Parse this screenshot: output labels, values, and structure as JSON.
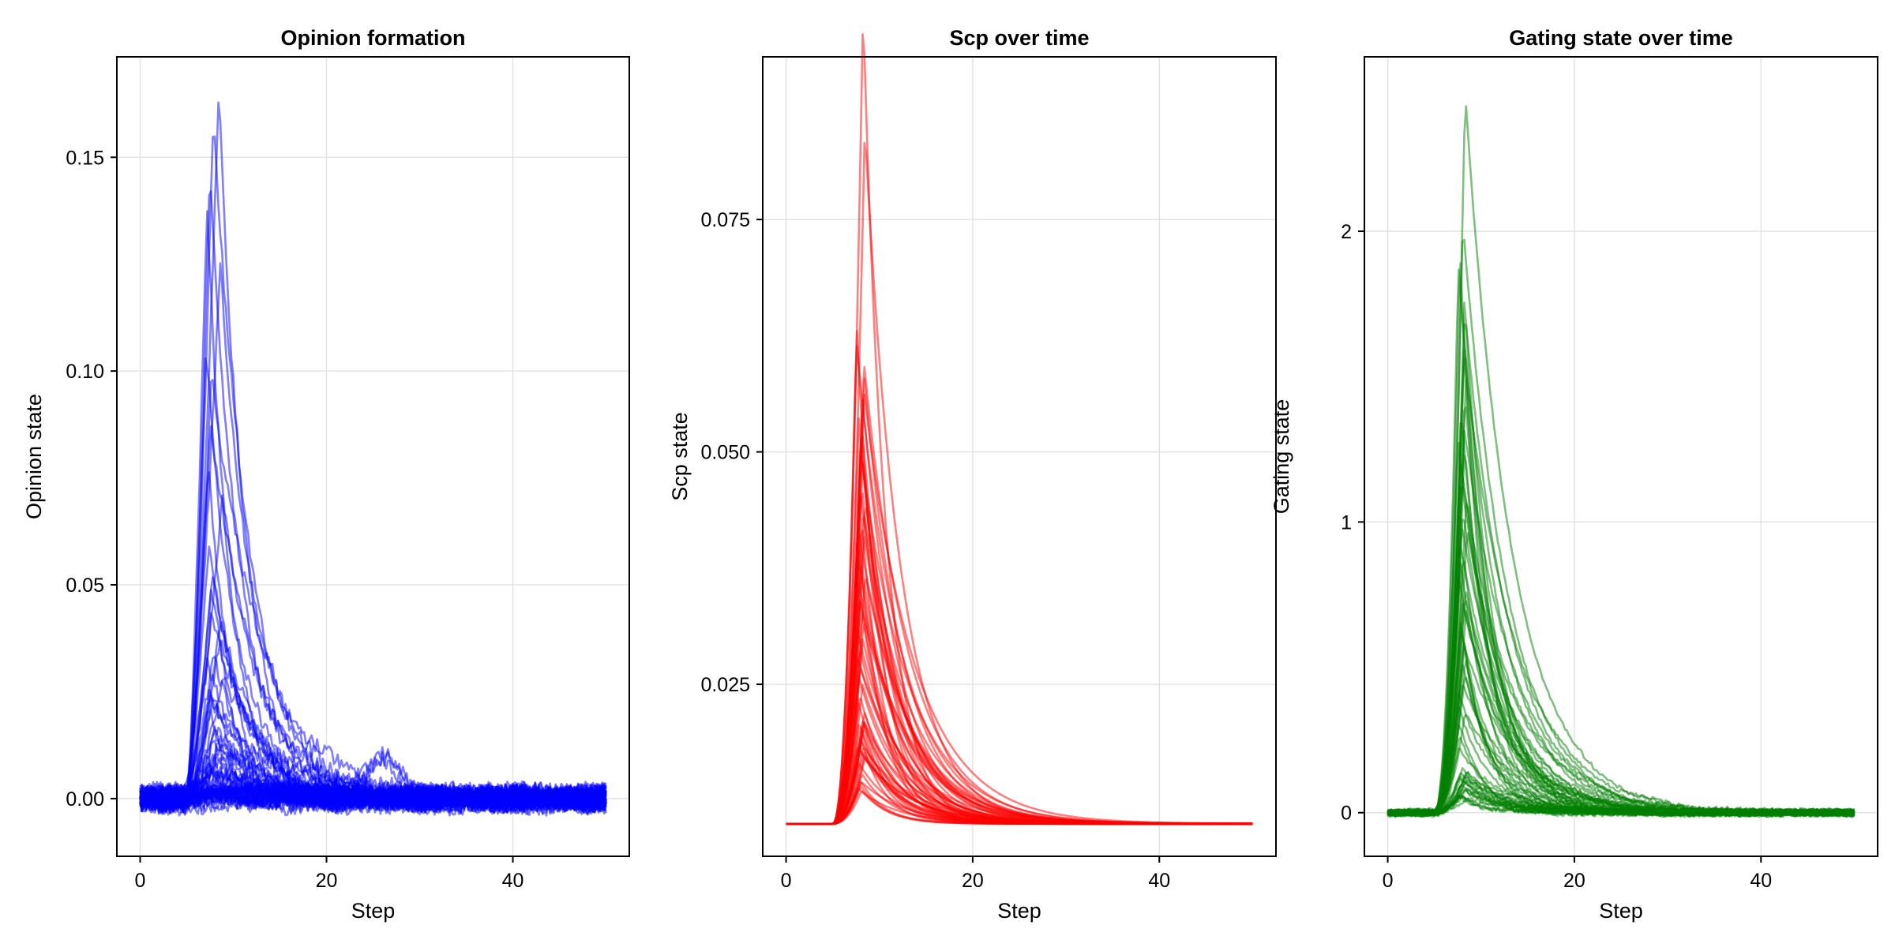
{
  "chart_data": [
    {
      "type": "line",
      "title": "Opinion formation",
      "xlabel": "Step",
      "ylabel": "Opinion state",
      "xlim": [
        -2.5,
        52.5
      ],
      "ylim": [
        -0.0135,
        0.1735
      ],
      "xticks": [
        0,
        20,
        40
      ],
      "xtick_labels": [
        "0",
        "20",
        "40"
      ],
      "yticks": [
        0,
        0.05,
        0.1,
        0.15
      ],
      "ytick_labels": [
        "0.00",
        "0.05",
        "0.10",
        "0.15"
      ],
      "grid": true,
      "color": "#0000ff",
      "x_range": [
        0,
        50
      ],
      "onset_step": 5,
      "series_count": 60,
      "peak_step_range": [
        7,
        9
      ],
      "peak_values": [
        0.166,
        0.16,
        0.147,
        0.14,
        0.125,
        0.106,
        0.1,
        0.09,
        0.08,
        0.07,
        0.06,
        0.055,
        0.05,
        0.045,
        0.04,
        0.037,
        0.034,
        0.031,
        0.028,
        0.026,
        0.024,
        0.022,
        0.02,
        0.018,
        0.016,
        0.014,
        0.012,
        0.011,
        0.01,
        0.009,
        0.008,
        0.007,
        0.006,
        0.005,
        0.0045,
        0.004,
        0.0035,
        0.003,
        0.0025,
        0.002
      ],
      "baseline_noise": 0.004,
      "secondary_bump": {
        "step": 26,
        "value": 0.011
      }
    },
    {
      "type": "line",
      "title": "Scp over time",
      "xlabel": "Step",
      "ylabel": "Scp state",
      "xlim": [
        -2.5,
        52.5
      ],
      "ylim": [
        0.0065,
        0.0925
      ],
      "xticks": [
        0,
        20,
        40
      ],
      "xtick_labels": [
        "0",
        "20",
        "40"
      ],
      "yticks": [
        0.025,
        0.05,
        0.075
      ],
      "ytick_labels": [
        "0.025",
        "0.050",
        "0.075"
      ],
      "grid": true,
      "color": "#ff0000",
      "x_range": [
        0,
        50
      ],
      "baseline": 0.01,
      "onset_step": 5,
      "series_count": 60,
      "peak_step_range": [
        7.5,
        8.5
      ],
      "peak_values": [
        0.088,
        0.075,
        0.054,
        0.052,
        0.05,
        0.048,
        0.047,
        0.046,
        0.044,
        0.043,
        0.042,
        0.04,
        0.039,
        0.037,
        0.036,
        0.035,
        0.034,
        0.033,
        0.032,
        0.031,
        0.03,
        0.029,
        0.028,
        0.027,
        0.026,
        0.025,
        0.024,
        0.023,
        0.022,
        0.021,
        0.02,
        0.019,
        0.018,
        0.017,
        0.016,
        0.015,
        0.014,
        0.013,
        0.012,
        0.011
      ]
    },
    {
      "type": "line",
      "title": "Gating state over time",
      "xlabel": "Step",
      "ylabel": "Gating state",
      "xlim": [
        -2.5,
        52.5
      ],
      "ylim": [
        -0.15,
        2.6
      ],
      "xticks": [
        0,
        20,
        40
      ],
      "xtick_labels": [
        "0",
        "20",
        "40"
      ],
      "yticks": [
        0,
        1,
        2
      ],
      "ytick_labels": [
        "0",
        "1",
        "2"
      ],
      "grid": true,
      "color": "#008000",
      "x_range": [
        0,
        50
      ],
      "onset_step": 5,
      "series_count": 60,
      "peak_step_range": [
        7.5,
        8.5
      ],
      "peak_values": [
        2.48,
        2.04,
        1.94,
        1.88,
        1.76,
        1.75,
        1.64,
        1.58,
        1.5,
        1.45,
        1.4,
        1.33,
        1.3,
        1.27,
        1.2,
        1.15,
        1.1,
        1.05,
        1.0,
        0.97,
        0.94,
        0.9,
        0.86,
        0.82,
        0.78,
        0.75,
        0.72,
        0.69,
        0.66,
        0.63,
        0.6,
        0.57,
        0.54,
        0.51,
        0.48,
        0.45,
        0.42,
        0.38,
        0.35,
        0.31,
        0.27,
        0.22,
        0.15
      ],
      "baseline_noise": 0.015
    }
  ]
}
